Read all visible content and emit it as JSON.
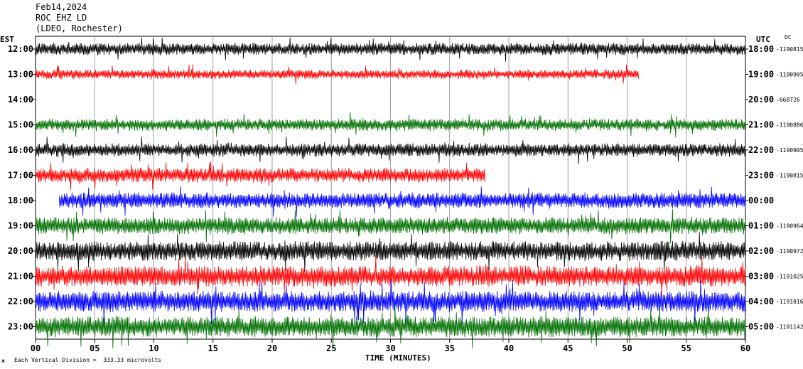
{
  "header": {
    "date": "Feb14,2024",
    "station": "ROC EHZ LD",
    "location": "(LDEO, Rochester)"
  },
  "left_axis_label": "EST",
  "right_axis_label": "UTC",
  "dc_label": "DC",
  "footer_note": "Each Vertical Division =  333.33 microvolts",
  "footer_mark": "ж",
  "colors": {
    "black": "#000000",
    "red": "#ff0000",
    "green": "#007000",
    "blue": "#0000ff"
  },
  "chart_data": {
    "type": "line",
    "title": "",
    "xlabel": "TIME (MINUTES)",
    "ylabel": "",
    "xlim": [
      0,
      60
    ],
    "x_ticks": [
      "00",
      "05",
      "10",
      "15",
      "20",
      "25",
      "30",
      "35",
      "40",
      "45",
      "50",
      "55",
      "60"
    ],
    "rows": [
      {
        "est": "12:00",
        "utc": "18:00",
        "dc": "-1190815",
        "color": "black",
        "amplitude": 0.9
      },
      {
        "est": "13:00",
        "utc": "19:00",
        "dc": "-1190905",
        "color": "red",
        "amplitude": 0.7,
        "end_min": 51
      },
      {
        "est": "14:00",
        "utc": "20:00",
        "dc": "-668726",
        "color": "green",
        "amplitude": 0.0
      },
      {
        "est": "15:00",
        "utc": "21:00",
        "dc": "-1190886",
        "color": "green",
        "amplitude": 0.9
      },
      {
        "est": "16:00",
        "utc": "22:00",
        "dc": "-1190905",
        "color": "black",
        "amplitude": 1.0
      },
      {
        "est": "17:00",
        "utc": "23:00",
        "dc": "-1190815",
        "color": "red",
        "amplitude": 1.1,
        "end_min": 38
      },
      {
        "est": "18:00",
        "utc": "00:00",
        "dc": "",
        "color": "blue",
        "amplitude": 1.2,
        "start_min": 2
      },
      {
        "est": "19:00",
        "utc": "01:00",
        "dc": "-1190964",
        "color": "green",
        "amplitude": 1.3
      },
      {
        "est": "20:00",
        "utc": "02:00",
        "dc": "-1190972",
        "color": "black",
        "amplitude": 1.5
      },
      {
        "est": "21:00",
        "utc": "03:00",
        "dc": "-1191025",
        "color": "red",
        "amplitude": 1.6
      },
      {
        "est": "22:00",
        "utc": "04:00",
        "dc": "-1191016",
        "color": "blue",
        "amplitude": 1.6
      },
      {
        "est": "23:00",
        "utc": "05:00",
        "dc": "-1191142",
        "color": "green",
        "amplitude": 1.6
      }
    ],
    "grid": true,
    "legend": "none"
  }
}
